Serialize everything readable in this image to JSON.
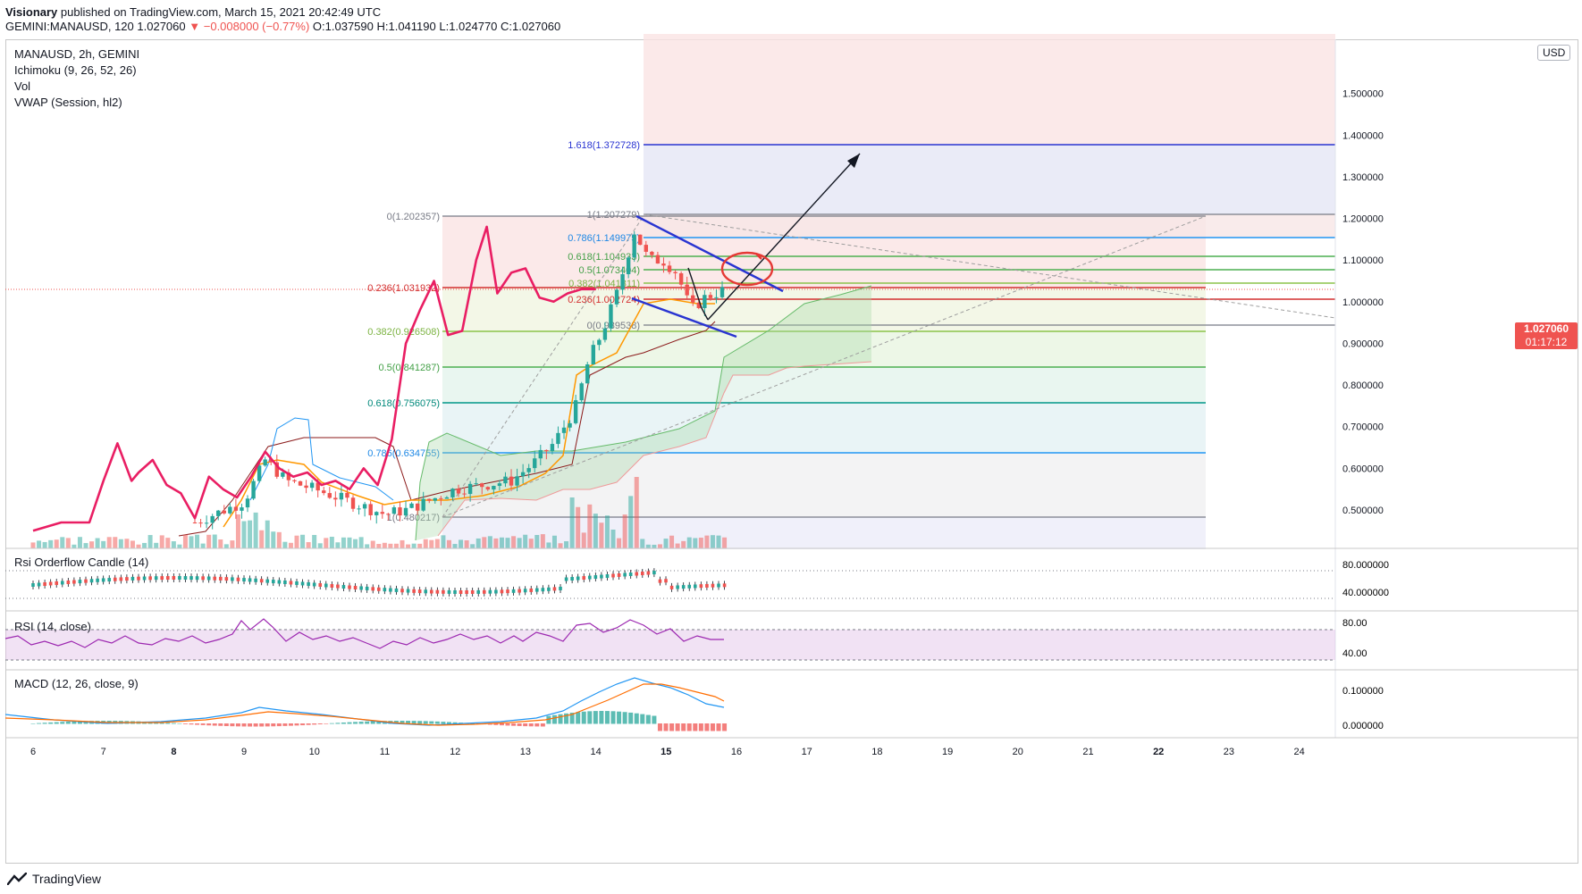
{
  "header": {
    "author": "Visionary",
    "published_text": "published on TradingView.com, March 15, 2021 20:42:49 UTC",
    "symbol_line": "GEMINI:MANAUSD, 120",
    "last_price": "1.027060",
    "arrow": "▼",
    "change": "−0.008000 (−0.77%)",
    "ohlc": "O:1.037590 H:1.041190 L:1.024770 C:1.027060"
  },
  "legend": {
    "title": "MANAUSD, 2h, GEMINI",
    "indicators": [
      "Ichimoku (9, 26, 52, 26)",
      "Vol",
      "VWAP (Session, hl2)"
    ]
  },
  "currency": "USD",
  "price_tag": {
    "price": "1.027060",
    "countdown": "01:17:12"
  },
  "panes": {
    "rsi_orderflow": {
      "title": "Rsi Orderflow Candle (14)",
      "ticks": [
        "80.000000",
        "40.000000"
      ]
    },
    "rsi": {
      "title": "RSI (14, close)",
      "ticks": [
        "80.00",
        "40.00"
      ]
    },
    "macd": {
      "title": "MACD (12, 26, close, 9)",
      "ticks": [
        "0.100000",
        "0.000000"
      ]
    }
  },
  "brand": "TradingView",
  "colors": {
    "up": "#26a69a",
    "down": "#ef5350",
    "vwap": "#e91e63",
    "fib_blue": "#2962ff",
    "wedge": "#2934d1",
    "ichimoku_base": "#8b1a1a",
    "macd": "#2196f3",
    "signal": "#ff6d00",
    "rsi": "#9c27b0"
  },
  "chart_data": {
    "type": "line",
    "title": "MANAUSD, 2h, GEMINI",
    "x_ticks": [
      "6",
      "7",
      "8",
      "9",
      "10",
      "11",
      "12",
      "13",
      "14",
      "15",
      "16",
      "17",
      "18",
      "19",
      "20",
      "21",
      "22",
      "23",
      "24"
    ],
    "bold_x_ticks": [
      "8",
      "15",
      "22"
    ],
    "y_ticks": [
      "1.500000",
      "1.400000",
      "1.300000",
      "1.200000",
      "1.100000",
      "1.000000",
      "0.900000",
      "0.800000",
      "0.700000",
      "0.600000",
      "0.500000"
    ],
    "ylim": [
      0.41,
      1.64
    ],
    "close_path": {
      "x_day": [
        8.3,
        9.0,
        9.3,
        9.6,
        10.0,
        10.5,
        11.0,
        11.3,
        11.6,
        12.0,
        12.4,
        12.8,
        13.1,
        13.4,
        13.7,
        13.9,
        14.1,
        14.3,
        14.55,
        14.75,
        14.95,
        15.15,
        15.35,
        15.55,
        15.85
      ],
      "values": [
        0.47,
        0.52,
        0.62,
        0.57,
        0.55,
        0.52,
        0.49,
        0.5,
        0.52,
        0.55,
        0.56,
        0.57,
        0.61,
        0.66,
        0.74,
        0.86,
        0.93,
        1.02,
        1.17,
        1.1,
        1.1,
        1.07,
        0.98,
        1.01,
        1.03
      ]
    },
    "vwap_line": {
      "x_day": [
        6.0,
        6.4,
        6.8,
        7.0,
        7.2,
        7.4,
        7.5,
        7.7,
        7.9,
        8.1,
        8.3,
        8.5,
        8.7,
        8.9,
        9.1,
        9.3,
        9.5,
        9.7,
        9.9,
        10.1,
        10.3,
        10.5,
        10.7,
        10.9,
        11.1,
        11.3,
        11.5,
        11.7,
        11.9,
        12.1,
        12.3,
        12.45,
        12.6,
        12.8,
        13.0,
        13.2,
        13.4,
        13.6,
        13.8,
        14.0
      ],
      "values": [
        0.45,
        0.47,
        0.47,
        0.57,
        0.66,
        0.57,
        0.59,
        0.62,
        0.56,
        0.54,
        0.48,
        0.58,
        0.55,
        0.53,
        0.58,
        0.64,
        0.6,
        0.58,
        0.59,
        0.56,
        0.57,
        0.55,
        0.6,
        0.56,
        0.67,
        0.9,
        0.98,
        1.05,
        0.92,
        0.93,
        1.1,
        1.18,
        1.02,
        1.07,
        1.08,
        1.01,
        1.0,
        1.02,
        1.03,
        1.03
      ]
    },
    "fib_retracement_left": {
      "levels": [
        {
          "label": "0(1.202357)",
          "value": 1.202357,
          "color": "#787b86"
        },
        {
          "label": "0.236(1.031932)",
          "value": 1.031932,
          "color": "#ef5350"
        },
        {
          "label": "0.382(0.926508)",
          "value": 0.926508,
          "color": "#8bc34a"
        },
        {
          "label": "0.5(0.841287)",
          "value": 0.841287,
          "color": "#4caf50"
        },
        {
          "label": "0.618(0.756075)",
          "value": 0.756075,
          "color": "#009688"
        },
        {
          "label": "0.786(0.634755)",
          "value": 0.634755,
          "color": "#2196f3"
        },
        {
          "label": "1(0.480217)",
          "value": 0.480217,
          "color": "#787b86"
        }
      ]
    },
    "fib_extension_right": {
      "levels": [
        {
          "label": "1.618(1.372728)",
          "value": 1.372728,
          "color": "#2934d1"
        },
        {
          "label": "1(1.207279)",
          "value": 1.207279,
          "color": "#787b86"
        },
        {
          "label": "0.786(1.149975)",
          "value": 1.149975,
          "color": "#2196f3"
        },
        {
          "label": "0.618(1.104933)",
          "value": 1.104933,
          "color": "#4caf50"
        },
        {
          "label": "0.5(1.073404)",
          "value": 1.073404,
          "color": "#4caf50"
        },
        {
          "label": "0.382(1.041811)",
          "value": 1.041811,
          "color": "#8bc34a"
        },
        {
          "label": "0.236(1.002724)",
          "value": 1.002724,
          "color": "#ef5350"
        },
        {
          "label": "0(0.939538)",
          "value": 0.939538,
          "color": "#787b86"
        }
      ]
    },
    "legend": "top-left",
    "grid": false
  }
}
